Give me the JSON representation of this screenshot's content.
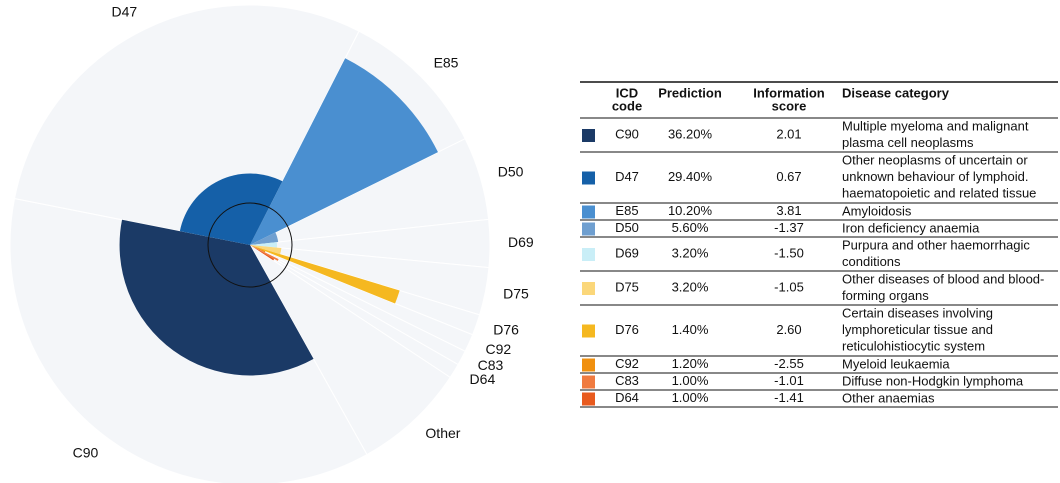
{
  "chart_data": {
    "type": "polar",
    "categories": [
      "C90",
      "D47",
      "E85",
      "D50",
      "D69",
      "D75",
      "D76",
      "C92",
      "C83",
      "D64"
    ],
    "values": [
      36.2,
      29.4,
      10.2,
      5.6,
      3.2,
      3.2,
      1.4,
      1.2,
      1.0,
      1.0
    ],
    "value_labels": [
      "36.20%",
      "29.40%",
      "10.20%",
      "5.60%",
      "3.20%",
      "3.20%",
      "1.40%",
      "1.20%",
      "1.00%",
      "1.00%"
    ],
    "scores": [
      2.01,
      0.67,
      3.81,
      -1.37,
      -1.5,
      -1.05,
      2.6,
      -2.55,
      -1.01,
      -1.41
    ],
    "score_labels": [
      "2.01",
      "0.67",
      "3.81",
      "-1.37",
      "-1.50",
      "-1.05",
      "2.60",
      "-2.55",
      "-1.01",
      "-1.41"
    ],
    "colors": [
      "#1b3a66",
      "#1560a8",
      "#4a8fd0",
      "#6f9fd0",
      "#c9eef7",
      "#fbd77a",
      "#f5b820",
      "#f0900f",
      "#f07b40",
      "#e85a1e"
    ],
    "other_label": "Other"
  },
  "table": {
    "headers": [
      [
        "ICD",
        "code"
      ],
      [
        "Prediction"
      ],
      [
        "Information",
        "score"
      ],
      [
        "Disease category"
      ]
    ],
    "descriptions": [
      [
        "Multiple myeloma and malignant",
        "plasma cell neoplasms"
      ],
      [
        "Other neoplasms of uncertain or",
        "unknown behaviour of lymphoid.",
        "haematopoietic and related tissue"
      ],
      [
        "Amyloidosis"
      ],
      [
        "Iron deficiency anaemia"
      ],
      [
        "Purpura and other haemorrhagic",
        "conditions"
      ],
      [
        "Other diseases of blood and blood-",
        "forming organs"
      ],
      [
        "Certain diseases involving",
        "lymphoreticular tissue and",
        "reticulohistiocytic system"
      ],
      [
        "Myeloid leukaemia"
      ],
      [
        "Diffuse non-Hodgkin lymphoma"
      ],
      [
        "Other anaemias"
      ]
    ]
  }
}
